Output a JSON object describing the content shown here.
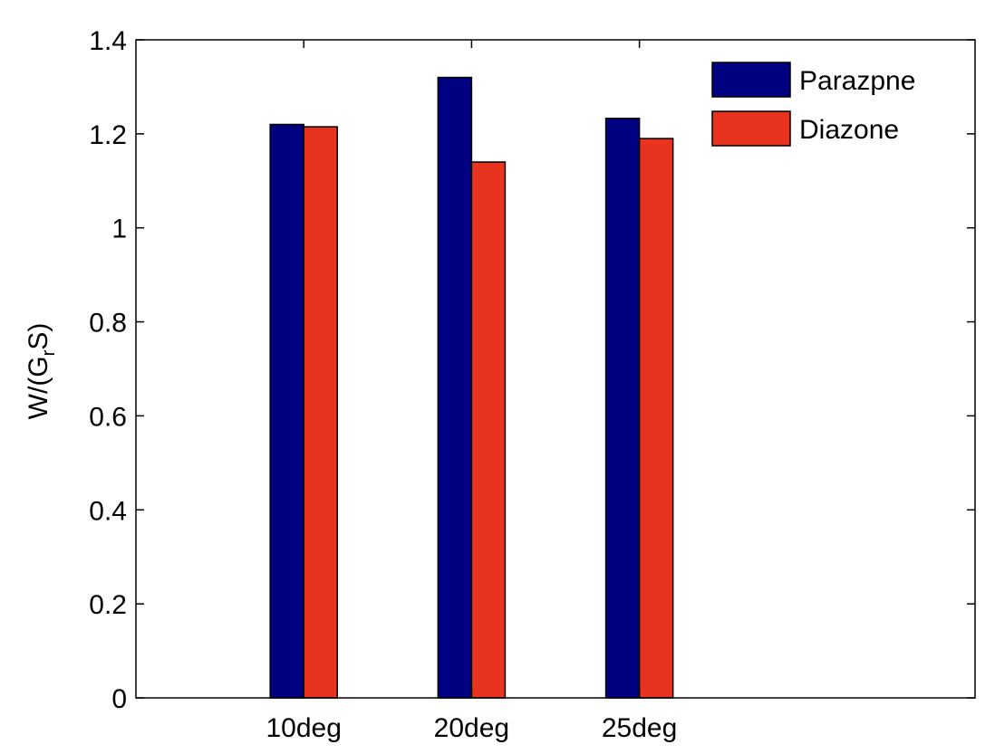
{
  "chart_data": {
    "type": "bar",
    "title": "",
    "xlabel": "",
    "ylabel": "W/(G_r S)",
    "ylabel_parts": {
      "main": "W/(G",
      "sub": "r",
      "tail": "S)"
    },
    "categories": [
      "10deg",
      "20deg",
      "25deg"
    ],
    "series": [
      {
        "name": "Parazpne",
        "color": "#000080",
        "values": [
          1.22,
          1.32,
          1.233
        ]
      },
      {
        "name": "Diazone",
        "color": "#e8341e",
        "values": [
          1.215,
          1.14,
          1.19
        ]
      }
    ],
    "ylim": [
      0,
      1.4
    ],
    "yticks": [
      "0",
      "0.2",
      "0.4",
      "0.6",
      "0.8",
      "1",
      "1.2",
      "1.4"
    ],
    "ytick_values": [
      0,
      0.2,
      0.4,
      0.6,
      0.8,
      1.0,
      1.2,
      1.4
    ],
    "grid": false,
    "legend_position": "top-right"
  }
}
